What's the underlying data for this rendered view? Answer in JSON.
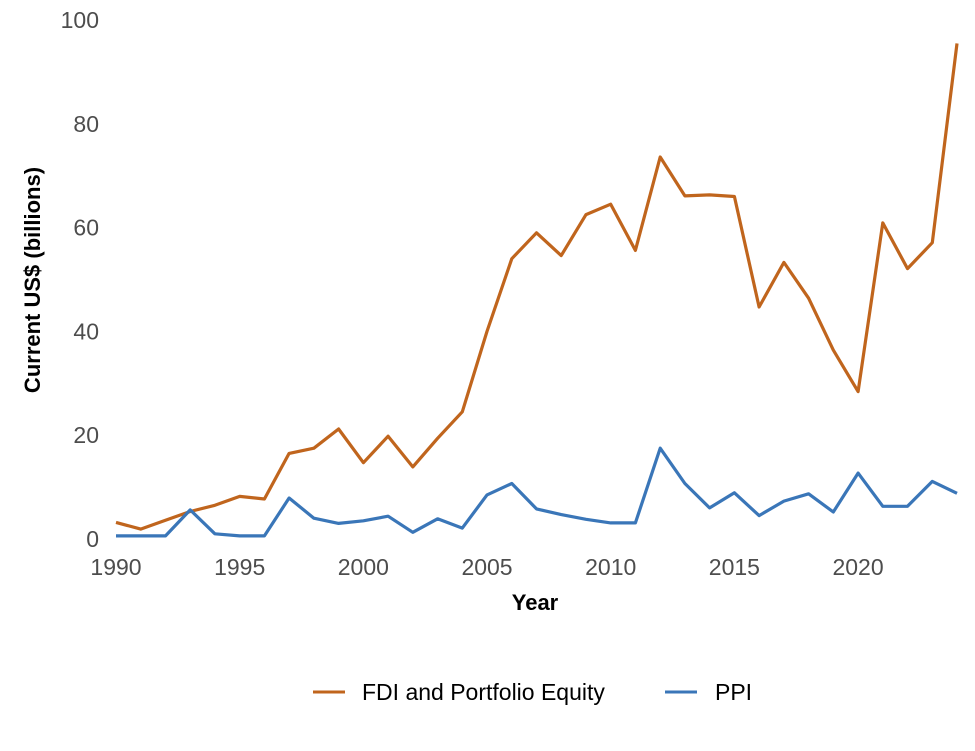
{
  "chart_data": {
    "type": "line",
    "xlabel": "Year",
    "ylabel": "Current US$ (billions)",
    "xlim": [
      1990,
      2024
    ],
    "ylim": [
      0,
      100
    ],
    "xticks": [
      1990,
      1995,
      2000,
      2005,
      2010,
      2015,
      2020
    ],
    "yticks": [
      0,
      20,
      40,
      60,
      80,
      100
    ],
    "grid": false,
    "legend_position": "bottom",
    "x": [
      1990,
      1991,
      1992,
      1993,
      1994,
      1995,
      1996,
      1997,
      1998,
      1999,
      2000,
      2001,
      2002,
      2003,
      2004,
      2005,
      2006,
      2007,
      2008,
      2009,
      2010,
      2011,
      2012,
      2013,
      2014,
      2015,
      2016,
      2017,
      2018,
      2019,
      2020,
      2021,
      2022,
      2023,
      2024
    ],
    "series": [
      {
        "name": "FDI and Portfolio Equity",
        "color": "#c0651d",
        "values": [
          3.2,
          1.9,
          3.6,
          5.3,
          6.5,
          8.2,
          7.7,
          16.5,
          17.5,
          21.2,
          14.7,
          19.8,
          13.9,
          19.4,
          24.5,
          40.0,
          54.0,
          59.0,
          54.6,
          62.5,
          64.5,
          55.6,
          73.6,
          66.1,
          66.3,
          66.0,
          44.7,
          53.3,
          46.4,
          36.4,
          28.4,
          60.9,
          52.1,
          57.1,
          95.5
        ]
      },
      {
        "name": "PPI",
        "color": "#3a76b8",
        "values": [
          0.6,
          0.6,
          0.6,
          5.6,
          1.0,
          0.6,
          0.6,
          7.9,
          4.0,
          3.0,
          3.5,
          4.4,
          1.3,
          3.9,
          2.1,
          8.5,
          10.7,
          5.8,
          4.7,
          3.8,
          3.1,
          3.1,
          17.5,
          10.7,
          6.0,
          8.9,
          4.5,
          7.3,
          8.7,
          5.2,
          12.7,
          6.3,
          6.3,
          11.1,
          8.8
        ]
      }
    ]
  }
}
